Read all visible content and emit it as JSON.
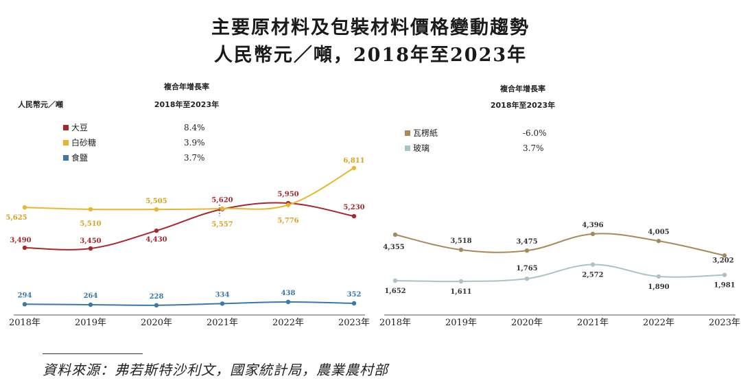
{
  "title_line1": "主要原材料及包裝材料價格變動趨勢",
  "title_line2": "人民幣元／噸，2018年至2023年",
  "source": "資料來源：弗若斯特沙利文，國家統計局，農業農村部",
  "chart_data": [
    {
      "type": "line",
      "ylabel": "人民幣元／噸",
      "legend_header": [
        "複合年增長率",
        "2018年至2023年"
      ],
      "legend_position": "top-left",
      "categories": [
        "2018年",
        "2019年",
        "2020年",
        "2021年",
        "2022年",
        "2023年"
      ],
      "series": [
        {
          "name": "大豆",
          "color": "#a8262d",
          "cagr": "8.4%",
          "values": [
            3490,
            3450,
            4430,
            5620,
            5950,
            5230
          ],
          "labels": [
            "3,490",
            "3,450",
            "4,430",
            "5,620",
            "5,950",
            "5,230"
          ]
        },
        {
          "name": "白砂糖",
          "color": "#e7b72d",
          "cagr": "3.9%",
          "values": [
            5625,
            5510,
            5505,
            5557,
            5776,
            6811
          ],
          "labels": [
            "5,625",
            "5,510",
            "5,505",
            "5,557",
            "5,776",
            "6,811"
          ]
        },
        {
          "name": "食鹽",
          "color": "#3b78aa",
          "cagr": "3.7%",
          "values": [
            294,
            264,
            228,
            334,
            438,
            352
          ],
          "labels": [
            "294",
            "264",
            "228",
            "334",
            "438",
            "352"
          ]
        }
      ]
    },
    {
      "type": "line",
      "legend_header": [
        "複合年增長率",
        "2018年至2023年"
      ],
      "legend_position": "top-left",
      "categories": [
        "2018年",
        "2019年",
        "2020年",
        "2021年",
        "2022年",
        "2023年"
      ],
      "series": [
        {
          "name": "瓦楞紙",
          "color": "#a88a5a",
          "cagr": "-6.0%",
          "values": [
            4355,
            3518,
            3475,
            4396,
            4005,
            3202
          ],
          "labels": [
            "4,355",
            "3,518",
            "3,475",
            "4,396",
            "4,005",
            "3,202"
          ]
        },
        {
          "name": "玻璃",
          "color": "#a9c3c6",
          "cagr": "3.7%",
          "values": [
            1652,
            1611,
            1765,
            2572,
            1890,
            1981
          ],
          "labels": [
            "1,652",
            "1,611",
            "1,765",
            "2,572",
            "1,890",
            "1,981"
          ]
        }
      ]
    }
  ]
}
